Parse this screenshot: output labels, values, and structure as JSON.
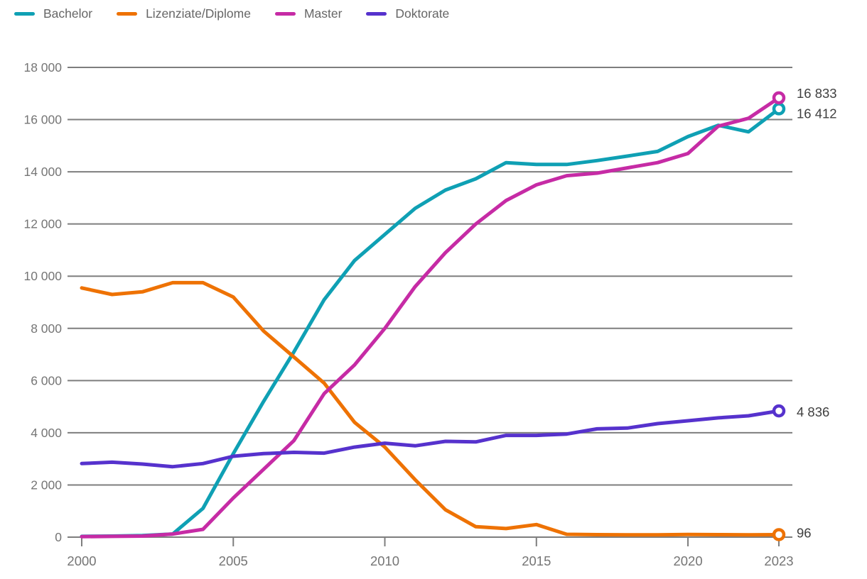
{
  "chart_data": {
    "type": "line",
    "title": "",
    "xlabel": "",
    "ylabel": "",
    "xlim": [
      2000,
      2023
    ],
    "ylim": [
      0,
      18000
    ],
    "grid": "horizontal",
    "legend_position": "top-left",
    "x": [
      2000,
      2001,
      2002,
      2003,
      2004,
      2005,
      2006,
      2007,
      2008,
      2009,
      2010,
      2011,
      2012,
      2013,
      2014,
      2015,
      2016,
      2017,
      2018,
      2019,
      2020,
      2021,
      2022,
      2023
    ],
    "x_ticks": [
      {
        "year": 2000,
        "label": "2000"
      },
      {
        "year": 2005,
        "label": "2005"
      },
      {
        "year": 2010,
        "label": "2010"
      },
      {
        "year": 2015,
        "label": "2015"
      },
      {
        "year": 2020,
        "label": "2020"
      },
      {
        "year": 2023,
        "label": "2023"
      }
    ],
    "y_ticks": [
      {
        "value": 0,
        "label": "0"
      },
      {
        "value": 2000,
        "label": "2 000"
      },
      {
        "value": 4000,
        "label": "4 000"
      },
      {
        "value": 6000,
        "label": "6 000"
      },
      {
        "value": 8000,
        "label": "8 000"
      },
      {
        "value": 10000,
        "label": "10 000"
      },
      {
        "value": 12000,
        "label": "12 000"
      },
      {
        "value": 14000,
        "label": "14 000"
      },
      {
        "value": 16000,
        "label": "16 000"
      },
      {
        "value": 18000,
        "label": "18 000"
      }
    ],
    "series": [
      {
        "name": "Bachelor",
        "color": "#0fa0b4",
        "end_label": "16 412",
        "end_value": 16412,
        "values": [
          30,
          40,
          60,
          120,
          1100,
          3200,
          5200,
          7100,
          9100,
          10600,
          11600,
          12600,
          13300,
          13730,
          14350,
          14280,
          14280,
          14430,
          14600,
          14780,
          15350,
          15780,
          15530,
          16412
        ]
      },
      {
        "name": "Lizenziate/Diplome",
        "color": "#ee7203",
        "end_label": "96",
        "end_value": 96,
        "values": [
          9550,
          9300,
          9400,
          9750,
          9750,
          9200,
          7900,
          6900,
          5900,
          4400,
          3450,
          2200,
          1050,
          400,
          330,
          480,
          110,
          95,
          90,
          90,
          100,
          95,
          90,
          96
        ]
      },
      {
        "name": "Master",
        "color": "#c62ba5",
        "end_label": "16 833",
        "end_value": 16833,
        "values": [
          20,
          30,
          40,
          120,
          300,
          1500,
          2600,
          3700,
          5500,
          6600,
          8000,
          9600,
          10900,
          12000,
          12900,
          13500,
          13850,
          13950,
          14150,
          14350,
          14700,
          15750,
          16050,
          16833
        ]
      },
      {
        "name": "Doktorate",
        "color": "#5632cd",
        "end_label": "4 836",
        "end_value": 4836,
        "values": [
          2820,
          2870,
          2800,
          2700,
          2820,
          3100,
          3200,
          3250,
          3220,
          3450,
          3600,
          3500,
          3670,
          3650,
          3900,
          3900,
          3950,
          4150,
          4180,
          4350,
          4460,
          4570,
          4650,
          4836
        ]
      }
    ],
    "colors": {
      "gridline": "#7e7e7e",
      "axis_text": "#757575",
      "legend_text": "#666666",
      "end_label_text": "#3f3f3f"
    }
  }
}
